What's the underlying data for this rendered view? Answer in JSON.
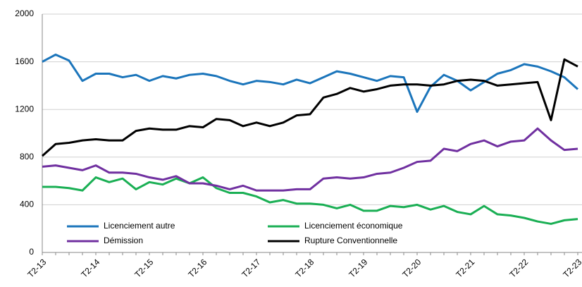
{
  "chart_data": {
    "type": "line",
    "categories": [
      "T2-13",
      null,
      null,
      null,
      "T2-14",
      null,
      null,
      null,
      "T2-15",
      null,
      null,
      null,
      "T2-16",
      null,
      null,
      null,
      "T2-17",
      null,
      null,
      null,
      "T2-18",
      null,
      null,
      null,
      "T2-19",
      null,
      null,
      null,
      "T2-20",
      null,
      null,
      null,
      "T2-21",
      null,
      null,
      null,
      "T2-22",
      null,
      null,
      null,
      "T2-23"
    ],
    "series": [
      {
        "name": "Licenciement autre",
        "color": "#1b75bb",
        "values": [
          1600,
          1660,
          1610,
          1440,
          1500,
          1500,
          1470,
          1490,
          1440,
          1480,
          1460,
          1490,
          1500,
          1480,
          1440,
          1410,
          1440,
          1430,
          1410,
          1450,
          1420,
          1470,
          1520,
          1500,
          1470,
          1440,
          1480,
          1470,
          1180,
          1390,
          1490,
          1440,
          1360,
          1430,
          1500,
          1530,
          1580,
          1560,
          1520,
          1470,
          1370
        ]
      },
      {
        "name": "Licenciement économique",
        "color": "#1aaf54",
        "values": [
          550,
          550,
          540,
          520,
          630,
          590,
          620,
          530,
          590,
          570,
          620,
          580,
          630,
          540,
          500,
          500,
          470,
          420,
          440,
          410,
          410,
          400,
          370,
          400,
          350,
          350,
          390,
          380,
          400,
          360,
          390,
          340,
          320,
          390,
          320,
          310,
          290,
          260,
          240,
          270,
          280
        ]
      },
      {
        "name": "Démission",
        "color": "#7030a0",
        "values": [
          720,
          730,
          710,
          690,
          730,
          670,
          670,
          660,
          630,
          610,
          640,
          580,
          580,
          560,
          530,
          560,
          520,
          520,
          520,
          530,
          530,
          620,
          630,
          620,
          630,
          660,
          670,
          710,
          760,
          770,
          870,
          850,
          910,
          940,
          890,
          930,
          940,
          1040,
          940,
          860,
          870
        ]
      },
      {
        "name": "Rupture Conventionnelle",
        "color": "#000000",
        "values": [
          810,
          910,
          920,
          940,
          950,
          940,
          940,
          1020,
          1040,
          1030,
          1030,
          1060,
          1050,
          1120,
          1110,
          1060,
          1090,
          1060,
          1090,
          1150,
          1160,
          1300,
          1330,
          1380,
          1350,
          1370,
          1400,
          1410,
          1410,
          1400,
          1410,
          1440,
          1450,
          1440,
          1400,
          1410,
          1420,
          1430,
          1110,
          1620,
          1560
        ]
      }
    ],
    "ylim": [
      0,
      2000
    ],
    "yticks": [
      0,
      400,
      800,
      1200,
      1600,
      2000
    ],
    "grid": true
  }
}
